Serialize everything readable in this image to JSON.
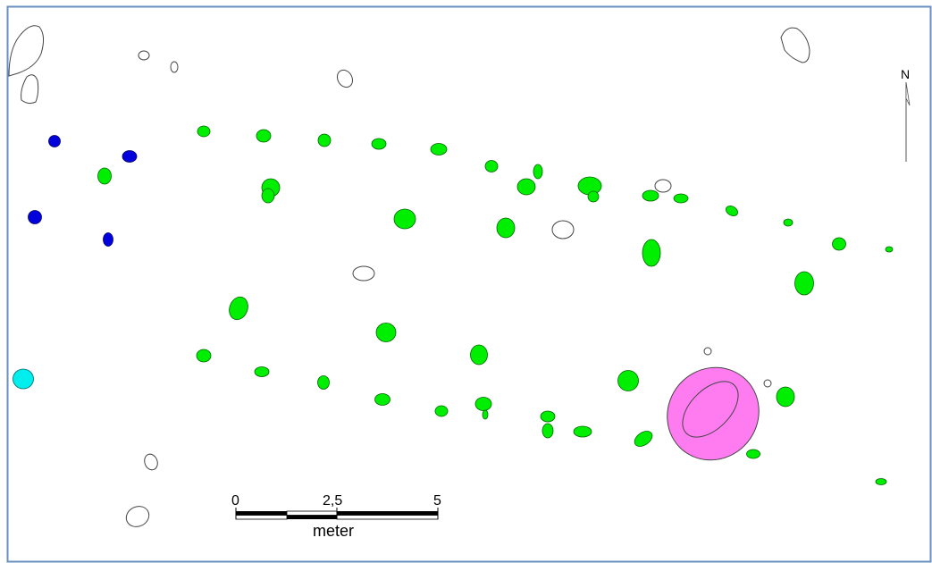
{
  "map": {
    "north_label": "N",
    "scale_bar": {
      "ticks": [
        "0",
        "2,5",
        "5"
      ],
      "unit": "meter"
    },
    "legend_colors": {
      "unfilled": "#ffffff",
      "green": "#00ee00",
      "blue": "#0000dd",
      "cyan": "#00eeee",
      "pink": "#ff7cf0"
    }
  }
}
